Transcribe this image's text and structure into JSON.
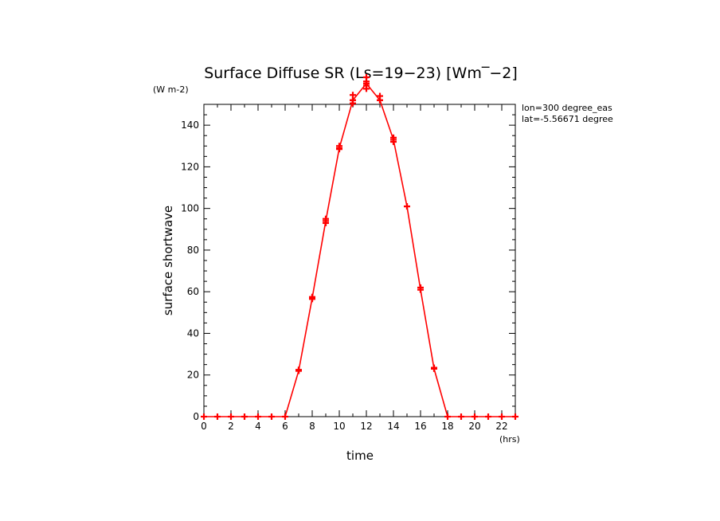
{
  "chart_data": {
    "type": "line",
    "title": "Surface Diffuse SR (Ls=19-23) [Wm^-2]",
    "title_display": "Surface Diffuse SR (Ls=19−23) [Wm‾−2]",
    "y_units": "(W m-2)",
    "x_units": "(hrs)",
    "xlabel": "time",
    "ylabel": "surface shortwave",
    "annotations": [
      "lon=300 degree_eas",
      "lat=-5.56671 degree"
    ],
    "xlim": [
      0,
      23
    ],
    "ylim": [
      0,
      150
    ],
    "x_ticks": [
      0,
      2,
      4,
      6,
      8,
      10,
      12,
      14,
      16,
      18,
      20,
      22
    ],
    "y_ticks": [
      0,
      20,
      40,
      60,
      80,
      100,
      120,
      140
    ],
    "grid": false,
    "series_color": "#ff0000",
    "series": [
      {
        "x": [
          0,
          1,
          2,
          3,
          4,
          5,
          6,
          7,
          8,
          9,
          10,
          11,
          12,
          13,
          14,
          15,
          16,
          17,
          18,
          19,
          20,
          21,
          22,
          23
        ],
        "values": [
          0,
          0,
          0,
          0,
          0,
          0,
          0,
          22,
          57,
          94,
          129,
          152,
          160,
          152,
          133,
          101,
          61,
          23,
          0,
          0,
          0,
          0,
          0,
          0
        ]
      }
    ],
    "scatter_points": [
      {
        "x": 7,
        "y": 22.5
      },
      {
        "x": 7,
        "y": 22
      },
      {
        "x": 8,
        "y": 57.5
      },
      {
        "x": 8,
        "y": 56.5
      },
      {
        "x": 9,
        "y": 95
      },
      {
        "x": 9,
        "y": 93
      },
      {
        "x": 10,
        "y": 130
      },
      {
        "x": 10,
        "y": 128.5
      },
      {
        "x": 11,
        "y": 154.5
      },
      {
        "x": 11,
        "y": 152
      },
      {
        "x": 11,
        "y": 150.5
      },
      {
        "x": 12,
        "y": 163
      },
      {
        "x": 12,
        "y": 161
      },
      {
        "x": 12,
        "y": 159
      },
      {
        "x": 12,
        "y": 157.5
      },
      {
        "x": 13,
        "y": 154
      },
      {
        "x": 13,
        "y": 152
      },
      {
        "x": 14,
        "y": 134
      },
      {
        "x": 14,
        "y": 132
      },
      {
        "x": 15,
        "y": 101
      },
      {
        "x": 16,
        "y": 62
      },
      {
        "x": 16,
        "y": 61
      },
      {
        "x": 17,
        "y": 23.5
      }
    ]
  }
}
